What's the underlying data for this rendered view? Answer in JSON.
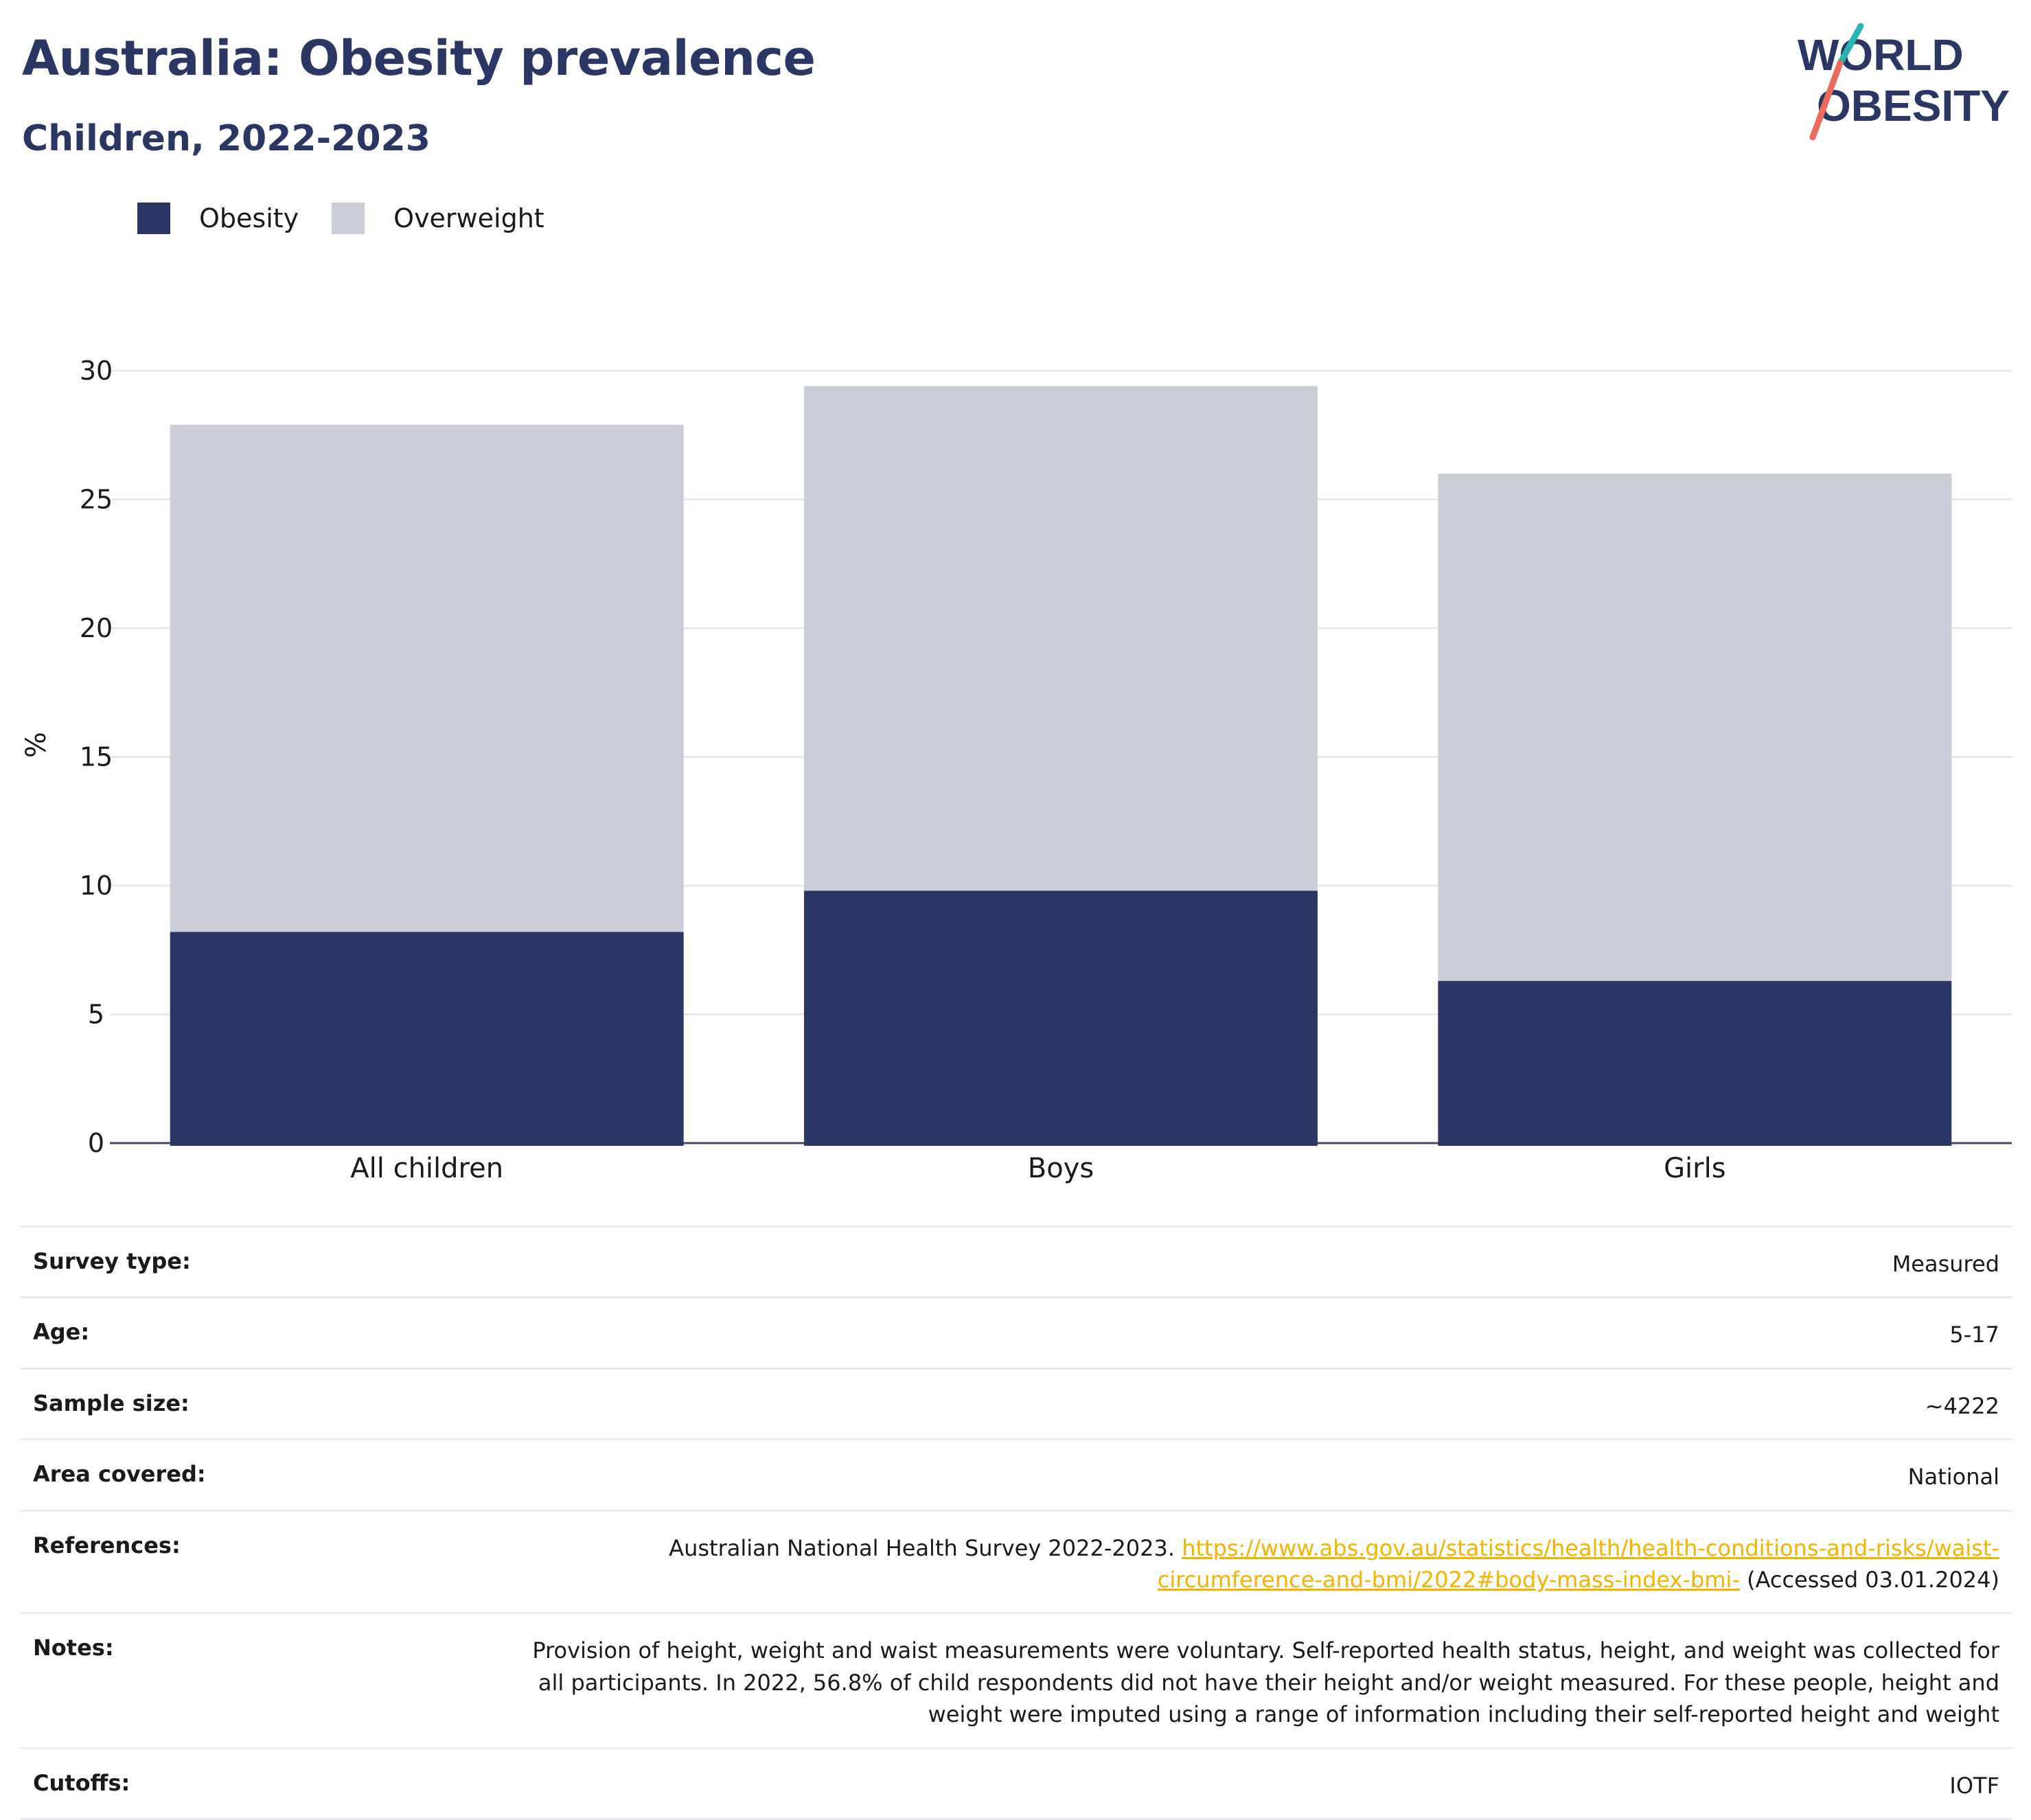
{
  "header": {
    "title": "Australia: Obesity prevalence",
    "subtitle": "Children, 2022-2023"
  },
  "logo": {
    "line1": "WORLD",
    "line2": "OBESITY"
  },
  "colors": {
    "obesity": "#2a3663",
    "overweight": "#caccd7",
    "accent_teal": "#2ab3b4",
    "accent_coral": "#ec6b5b",
    "link": "#f3b400"
  },
  "legend": [
    {
      "label": "Obesity",
      "color": "#2a3663"
    },
    {
      "label": "Overweight",
      "color": "#caccd7"
    }
  ],
  "chart_data": {
    "type": "bar",
    "stacked": true,
    "categories": [
      "All children",
      "Boys",
      "Girls"
    ],
    "series": [
      {
        "name": "Obesity",
        "values": [
          8.2,
          9.8,
          6.3
        ]
      },
      {
        "name": "Overweight",
        "values": [
          19.7,
          19.6,
          19.7
        ]
      }
    ],
    "ylabel": "%",
    "ylim": [
      0,
      30
    ],
    "yticks": [
      0,
      5,
      10,
      15,
      20,
      25,
      30
    ],
    "grid": true,
    "legend_position": "top-left"
  },
  "info": {
    "survey_type": {
      "label": "Survey type:",
      "value": "Measured"
    },
    "age": {
      "label": "Age:",
      "value": "5-17"
    },
    "sample_size": {
      "label": "Sample size:",
      "value": "~4222"
    },
    "area": {
      "label": "Area covered:",
      "value": "National"
    },
    "references": {
      "label": "References:",
      "text": "Australian National Health Survey 2022-2023.",
      "link_line1": "https://www.abs.gov.au/statistics/health/health-conditions-and-risks/waist-",
      "link_line2": "circumference-and-bmi/2022#body-mass-index-bmi-",
      "accessed": "(Accessed 03.01.2024)"
    },
    "notes": {
      "label": "Notes:",
      "line1": "Provision of height, weight and waist measurements were voluntary. Self-reported health status, height, and weight was collected for",
      "line2": "all participants. In 2022, 56.8% of child respondents did not have their height and/or weight measured. For these people, height and",
      "line3": "weight were imputed using a range of information including their self-reported height and weight"
    },
    "cutoffs": {
      "label": "Cutoffs:",
      "value": "IOTF"
    }
  }
}
